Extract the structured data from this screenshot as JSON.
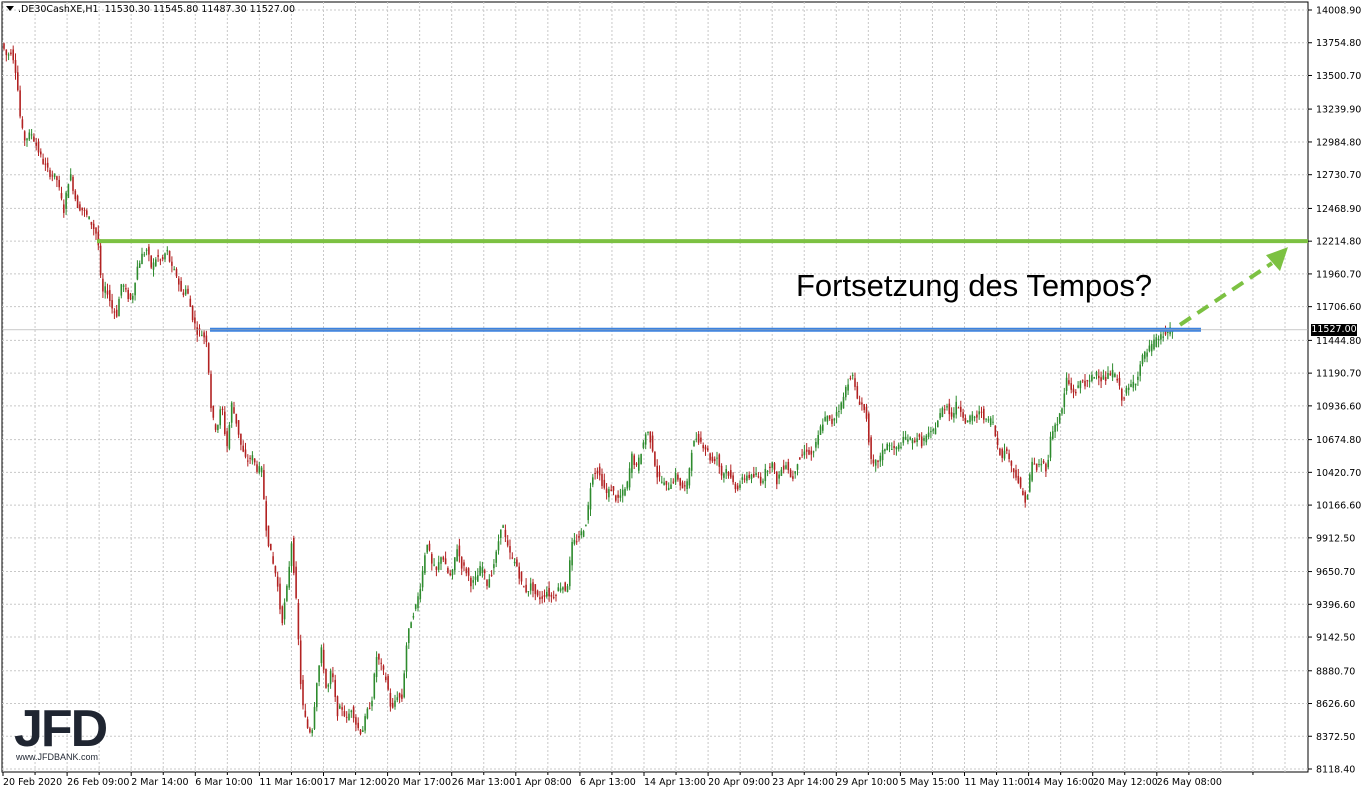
{
  "header": {
    "symbol": ".DE30CashXE,H1",
    "ohlc": "11530.30 11545.80 11487.30 11527.00"
  },
  "annotation": "Fortsetzung des Tempos?",
  "logo": {
    "text": "JFD",
    "subtext": "www.JFDBANK.com"
  },
  "current_price_label": "11527.00",
  "colors": {
    "up_candle": "#2e8b2e",
    "down_candle": "#b22222",
    "resistance_line": "#7cc142",
    "support_line": "#3b82e0",
    "arrow": "#7cc142",
    "grid": "#c8c8c8"
  },
  "chart_data": {
    "type": "candlestick",
    "y_axis_ticks": [
      "14008.90",
      "13754.80",
      "13500.70",
      "13239.90",
      "12984.80",
      "12730.70",
      "12468.90",
      "12214.80",
      "11960.70",
      "11706.60",
      "11444.80",
      "11190.70",
      "10936.60",
      "10674.80",
      "10420.70",
      "10166.60",
      "9912.50",
      "9650.70",
      "9396.60",
      "9142.50",
      "8880.70",
      "8626.60",
      "8372.50",
      "8118.40"
    ],
    "x_axis_ticks": [
      "20 Feb 2020",
      "26 Feb 09:00",
      "2 Mar 14:00",
      "6 Mar 10:00",
      "11 Mar 16:00",
      "17 Mar 12:00",
      "20 Mar 17:00",
      "26 Mar 13:00",
      "1 Apr 08:00",
      "6 Apr 13:00",
      "14 Apr 13:00",
      "20 Apr 09:00",
      "23 Apr 14:00",
      "29 Apr 10:00",
      "5 May 15:00",
      "11 May 11:00",
      "14 May 16:00",
      "20 May 12:00",
      "26 May 08:00"
    ],
    "ylim": [
      8118.4,
      14008.9
    ],
    "price_path": [
      [
        0,
        13750
      ],
      [
        5,
        13650
      ],
      [
        10,
        13700
      ],
      [
        15,
        13500
      ],
      [
        18,
        13200
      ],
      [
        22,
        13000
      ],
      [
        30,
        13050
      ],
      [
        40,
        12850
      ],
      [
        47,
        12750
      ],
      [
        55,
        12700
      ],
      [
        62,
        12450
      ],
      [
        68,
        12750
      ],
      [
        75,
        12500
      ],
      [
        82,
        12450
      ],
      [
        90,
        12350
      ],
      [
        96,
        12250
      ],
      [
        100,
        11800
      ],
      [
        105,
        11850
      ],
      [
        110,
        11700
      ],
      [
        115,
        11650
      ],
      [
        120,
        11900
      ],
      [
        125,
        11800
      ],
      [
        130,
        11750
      ],
      [
        135,
        12000
      ],
      [
        140,
        12100
      ],
      [
        145,
        12150
      ],
      [
        150,
        12000
      ],
      [
        155,
        12100
      ],
      [
        160,
        12050
      ],
      [
        165,
        12150
      ],
      [
        170,
        12000
      ],
      [
        175,
        11950
      ],
      [
        180,
        11800
      ],
      [
        185,
        11850
      ],
      [
        190,
        11650
      ],
      [
        195,
        11520
      ],
      [
        200,
        11500
      ],
      [
        205,
        11450
      ],
      [
        210,
        10850
      ],
      [
        215,
        10750
      ],
      [
        220,
        10950
      ],
      [
        225,
        10600
      ],
      [
        230,
        10950
      ],
      [
        235,
        10800
      ],
      [
        240,
        10600
      ],
      [
        245,
        10500
      ],
      [
        250,
        10550
      ],
      [
        255,
        10450
      ],
      [
        260,
        10430
      ],
      [
        265,
        9950
      ],
      [
        270,
        9750
      ],
      [
        275,
        9600
      ],
      [
        280,
        9250
      ],
      [
        285,
        9500
      ],
      [
        290,
        9900
      ],
      [
        295,
        9350
      ],
      [
        300,
        8650
      ],
      [
        305,
        8450
      ],
      [
        310,
        8400
      ],
      [
        315,
        8800
      ],
      [
        320,
        9050
      ],
      [
        325,
        8700
      ],
      [
        330,
        8900
      ],
      [
        335,
        8550
      ],
      [
        340,
        8600
      ],
      [
        345,
        8500
      ],
      [
        350,
        8600
      ],
      [
        355,
        8450
      ],
      [
        360,
        8400
      ],
      [
        365,
        8550
      ],
      [
        370,
        8650
      ],
      [
        375,
        9000
      ],
      [
        380,
        8900
      ],
      [
        385,
        8800
      ],
      [
        390,
        8550
      ],
      [
        395,
        8700
      ],
      [
        400,
        8650
      ],
      [
        405,
        9100
      ],
      [
        410,
        9300
      ],
      [
        415,
        9400
      ],
      [
        420,
        9600
      ],
      [
        425,
        9900
      ],
      [
        430,
        9700
      ],
      [
        435,
        9650
      ],
      [
        440,
        9800
      ],
      [
        445,
        9650
      ],
      [
        450,
        9600
      ],
      [
        455,
        9850
      ],
      [
        460,
        9700
      ],
      [
        465,
        9650
      ],
      [
        470,
        9550
      ],
      [
        475,
        9600
      ],
      [
        480,
        9700
      ],
      [
        485,
        9550
      ],
      [
        490,
        9650
      ],
      [
        495,
        9800
      ],
      [
        500,
        10050
      ],
      [
        505,
        9850
      ],
      [
        510,
        9750
      ],
      [
        515,
        9700
      ],
      [
        520,
        9550
      ],
      [
        525,
        9500
      ],
      [
        530,
        9550
      ],
      [
        535,
        9450
      ],
      [
        540,
        9450
      ],
      [
        545,
        9500
      ],
      [
        550,
        9450
      ],
      [
        555,
        9500
      ],
      [
        560,
        9550
      ],
      [
        565,
        9500
      ],
      [
        570,
        9850
      ],
      [
        575,
        9900
      ],
      [
        580,
        9950
      ],
      [
        585,
        10050
      ],
      [
        590,
        10400
      ],
      [
        595,
        10450
      ],
      [
        600,
        10350
      ],
      [
        605,
        10250
      ],
      [
        610,
        10300
      ],
      [
        615,
        10200
      ],
      [
        620,
        10250
      ],
      [
        625,
        10300
      ],
      [
        630,
        10550
      ],
      [
        635,
        10450
      ],
      [
        640,
        10600
      ],
      [
        645,
        10750
      ],
      [
        650,
        10650
      ],
      [
        655,
        10400
      ],
      [
        660,
        10350
      ],
      [
        665,
        10300
      ],
      [
        670,
        10350
      ],
      [
        675,
        10400
      ],
      [
        680,
        10300
      ],
      [
        685,
        10300
      ],
      [
        690,
        10600
      ],
      [
        695,
        10700
      ],
      [
        700,
        10650
      ],
      [
        705,
        10600
      ],
      [
        710,
        10500
      ],
      [
        715,
        10550
      ],
      [
        720,
        10400
      ],
      [
        725,
        10450
      ],
      [
        730,
        10350
      ],
      [
        735,
        10300
      ],
      [
        740,
        10350
      ],
      [
        745,
        10400
      ],
      [
        750,
        10380
      ],
      [
        755,
        10400
      ],
      [
        760,
        10350
      ],
      [
        765,
        10450
      ],
      [
        770,
        10500
      ],
      [
        775,
        10350
      ],
      [
        780,
        10450
      ],
      [
        785,
        10500
      ],
      [
        790,
        10350
      ],
      [
        795,
        10500
      ],
      [
        800,
        10550
      ],
      [
        805,
        10600
      ],
      [
        810,
        10550
      ],
      [
        815,
        10650
      ],
      [
        820,
        10800
      ],
      [
        825,
        10850
      ],
      [
        830,
        10800
      ],
      [
        835,
        10900
      ],
      [
        840,
        10950
      ],
      [
        845,
        11100
      ],
      [
        850,
        11200
      ],
      [
        855,
        11000
      ],
      [
        860,
        10950
      ],
      [
        865,
        10850
      ],
      [
        870,
        10450
      ],
      [
        875,
        10500
      ],
      [
        880,
        10550
      ],
      [
        885,
        10650
      ],
      [
        890,
        10600
      ],
      [
        895,
        10600
      ],
      [
        900,
        10650
      ],
      [
        905,
        10700
      ],
      [
        910,
        10650
      ],
      [
        915,
        10700
      ],
      [
        920,
        10650
      ],
      [
        925,
        10700
      ],
      [
        930,
        10720
      ],
      [
        935,
        10800
      ],
      [
        940,
        10900
      ],
      [
        945,
        10950
      ],
      [
        950,
        10850
      ],
      [
        955,
        10950
      ],
      [
        960,
        10900
      ],
      [
        965,
        10800
      ],
      [
        970,
        10850
      ],
      [
        975,
        10850
      ],
      [
        980,
        10900
      ],
      [
        985,
        10800
      ],
      [
        990,
        10850
      ],
      [
        995,
        10650
      ],
      [
        1000,
        10550
      ],
      [
        1005,
        10600
      ],
      [
        1010,
        10450
      ],
      [
        1015,
        10400
      ],
      [
        1020,
        10250
      ],
      [
        1025,
        10200
      ],
      [
        1030,
        10500
      ],
      [
        1035,
        10450
      ],
      [
        1040,
        10500
      ],
      [
        1045,
        10450
      ],
      [
        1050,
        10750
      ],
      [
        1055,
        10800
      ],
      [
        1060,
        10900
      ],
      [
        1065,
        11150
      ],
      [
        1070,
        11050
      ],
      [
        1075,
        11050
      ],
      [
        1080,
        11150
      ],
      [
        1085,
        11100
      ],
      [
        1090,
        11150
      ],
      [
        1095,
        11200
      ],
      [
        1100,
        11150
      ],
      [
        1105,
        11150
      ],
      [
        1110,
        11200
      ],
      [
        1115,
        11150
      ],
      [
        1120,
        11000
      ],
      [
        1125,
        11050
      ],
      [
        1130,
        11100
      ],
      [
        1135,
        11150
      ],
      [
        1140,
        11300
      ],
      [
        1145,
        11350
      ],
      [
        1150,
        11400
      ],
      [
        1155,
        11450
      ],
      [
        1160,
        11480
      ],
      [
        1165,
        11500
      ],
      [
        1170,
        11527
      ]
    ],
    "resistance_level": 12214.8,
    "support_level": 11527.0,
    "grid": true
  }
}
